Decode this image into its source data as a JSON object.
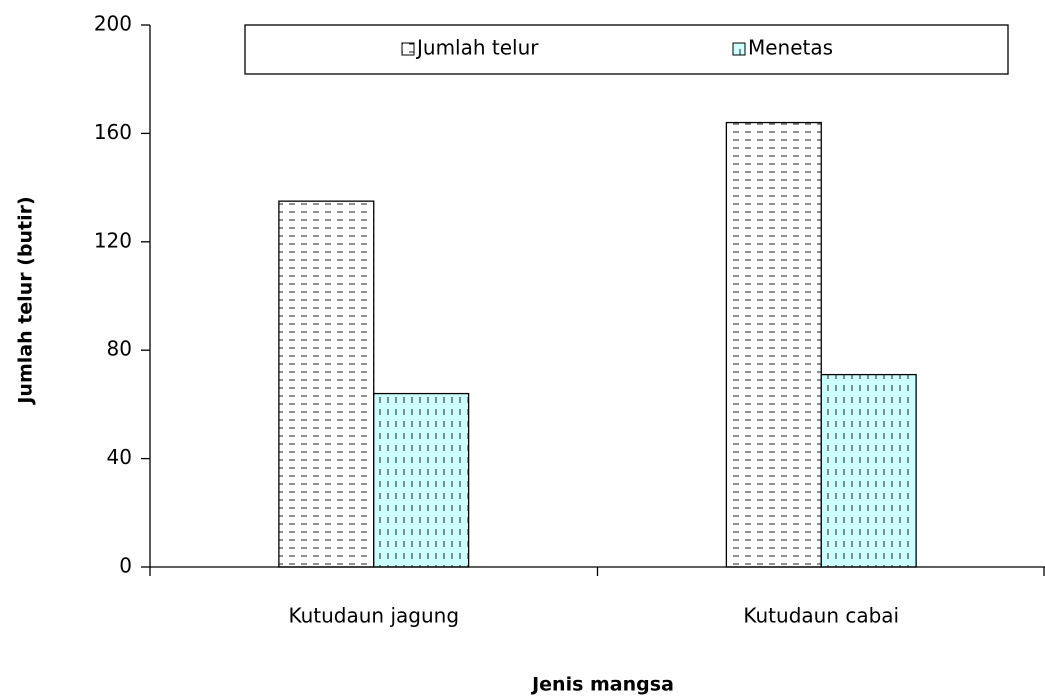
{
  "chart_data": {
    "type": "bar",
    "categories": [
      "Kutudaun jagung",
      "Kutudaun cabai"
    ],
    "series": [
      {
        "name": "Jumlah telur",
        "color": "#ffffff",
        "values": [
          135,
          164
        ]
      },
      {
        "name": "Menetas",
        "color": "#ccffff",
        "values": [
          64,
          71
        ]
      }
    ],
    "xlabel": "Jenis mangsa",
    "ylabel": "Jumlah telur (butir)",
    "ylim": [
      0,
      200
    ],
    "yticks": [
      0,
      40,
      80,
      120,
      160,
      200
    ],
    "grid": false,
    "legend": "top"
  }
}
